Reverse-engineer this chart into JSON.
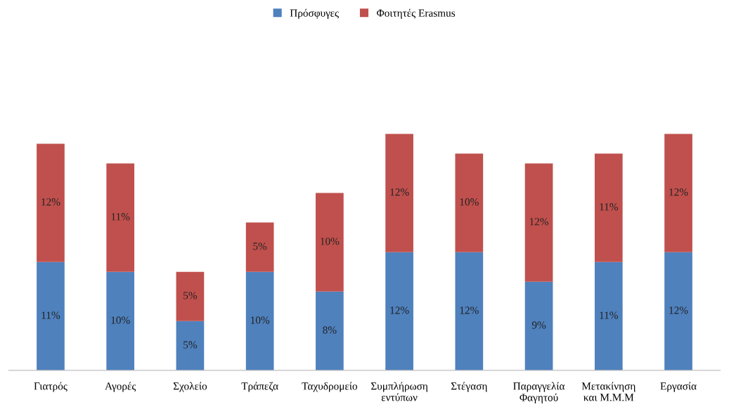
{
  "chart_data": {
    "type": "bar",
    "stacked": true,
    "legend": "top",
    "grid": false,
    "categories": [
      "Γιατρός",
      "Αγορές",
      "Σχολείο",
      "Τράπεζα",
      "Ταχυδρομείο",
      "Συμπλήρωση\nεντύπων",
      "Στέγαση",
      "Παραγγελία\nΦαγητού",
      "Μετακίνηση\nκαι Μ.Μ.Μ",
      "Εργασία"
    ],
    "series": [
      {
        "name": "Πρόσφυγες",
        "color": "#4f81bd",
        "values": [
          11,
          10,
          5,
          10,
          8,
          12,
          12,
          9,
          11,
          12
        ],
        "value_labels": [
          "11%",
          "10%",
          "5%",
          "10%",
          "8%",
          "12%",
          "12%",
          "9%",
          "11%",
          "12%"
        ]
      },
      {
        "name": "Φοιτητές Erasmus",
        "color": "#c0504d",
        "values": [
          12,
          11,
          5,
          5,
          10,
          12,
          10,
          12,
          11,
          12
        ],
        "value_labels": [
          "12%",
          "11%",
          "5%",
          "5%",
          "10%",
          "12%",
          "10%",
          "12%",
          "11%",
          "12%"
        ]
      }
    ]
  }
}
